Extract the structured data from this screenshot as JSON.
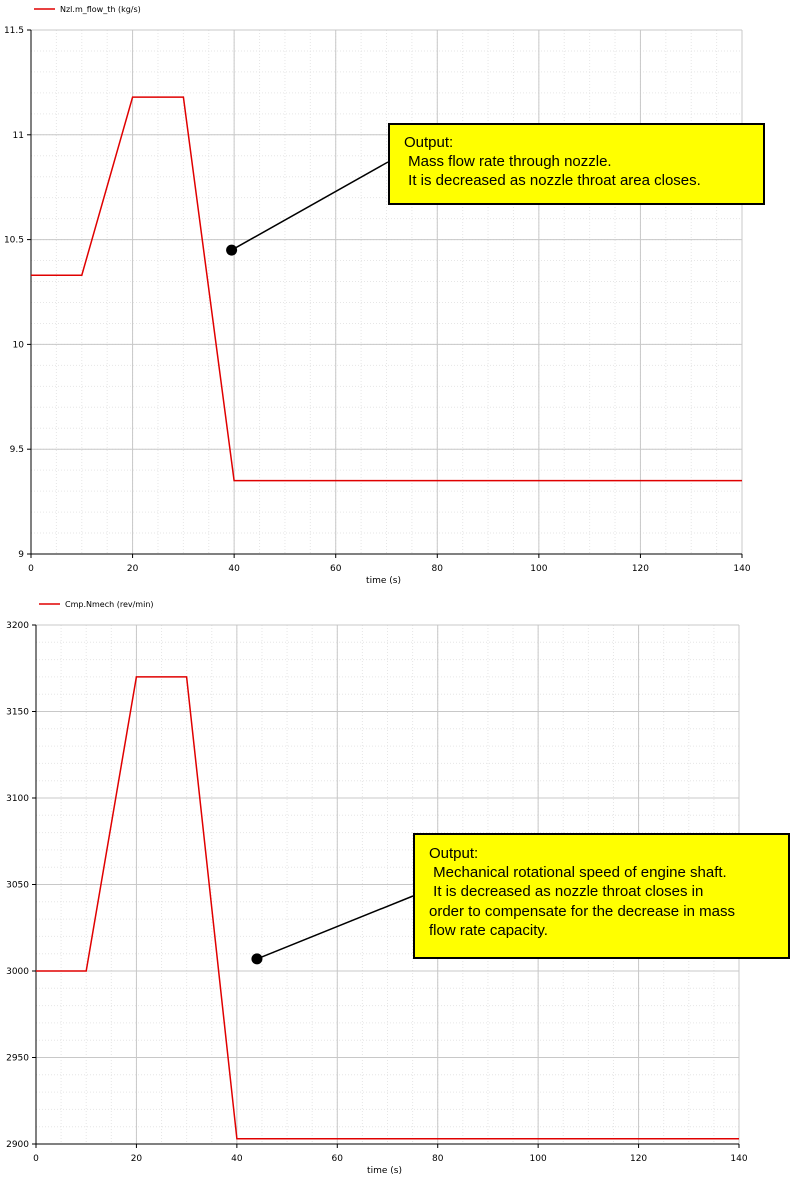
{
  "chart_data": [
    {
      "type": "line",
      "legend": "Nzl.m_flow_th (kg/s)",
      "legend_position": "top-left",
      "xlabel": "time (s)",
      "xlim": [
        0,
        140
      ],
      "ylim": [
        9,
        11.5
      ],
      "x_ticks": [
        0,
        20,
        40,
        60,
        80,
        100,
        120,
        140
      ],
      "y_ticks": [
        9,
        9.5,
        10,
        10.5,
        11,
        11.5
      ],
      "x_tick_labels": [
        "0",
        "20",
        "40",
        "60",
        "80",
        "100",
        "120",
        "140"
      ],
      "y_tick_labels": [
        "9",
        "9.5",
        "10",
        "10.5",
        "11",
        "11.5"
      ],
      "grid": true,
      "series": [
        {
          "name": "Nzl.m_flow_th (kg/s)",
          "color": "#e00000",
          "x": [
            0,
            10,
            20,
            30,
            40,
            140
          ],
          "y": [
            10.33,
            10.33,
            11.18,
            11.18,
            9.35,
            9.35
          ]
        }
      ],
      "annotation": {
        "lines": [
          "Output:",
          " Mass flow rate through nozzle.",
          " It is decreased as nozzle throat area closes."
        ],
        "point": [
          39.5,
          10.45
        ]
      }
    },
    {
      "type": "line",
      "legend": "Cmp.Nmech (rev/min)",
      "legend_position": "top-left",
      "xlabel": "time (s)",
      "xlim": [
        0,
        140
      ],
      "ylim": [
        2900,
        3200
      ],
      "x_ticks": [
        0,
        20,
        40,
        60,
        80,
        100,
        120,
        140
      ],
      "y_ticks": [
        2900,
        2950,
        3000,
        3050,
        3100,
        3150,
        3200
      ],
      "x_tick_labels": [
        "0",
        "20",
        "40",
        "60",
        "80",
        "100",
        "120",
        "140"
      ],
      "y_tick_labels": [
        "2900",
        "2950",
        "3000",
        "3050",
        "3100",
        "3150",
        "3200"
      ],
      "grid": true,
      "series": [
        {
          "name": "Cmp.Nmech (rev/min)",
          "color": "#e00000",
          "x": [
            0,
            10,
            20,
            30,
            40,
            140
          ],
          "y": [
            3000,
            3000,
            3170,
            3170,
            2903,
            2903
          ]
        }
      ],
      "annotation": {
        "lines": [
          "Output:",
          " Mechanical rotational speed of engine shaft.",
          " It is decreased as nozzle throat closes in",
          "order to compensate for the decrease in mass",
          "flow rate capacity."
        ],
        "point": [
          44,
          3007
        ]
      }
    }
  ]
}
